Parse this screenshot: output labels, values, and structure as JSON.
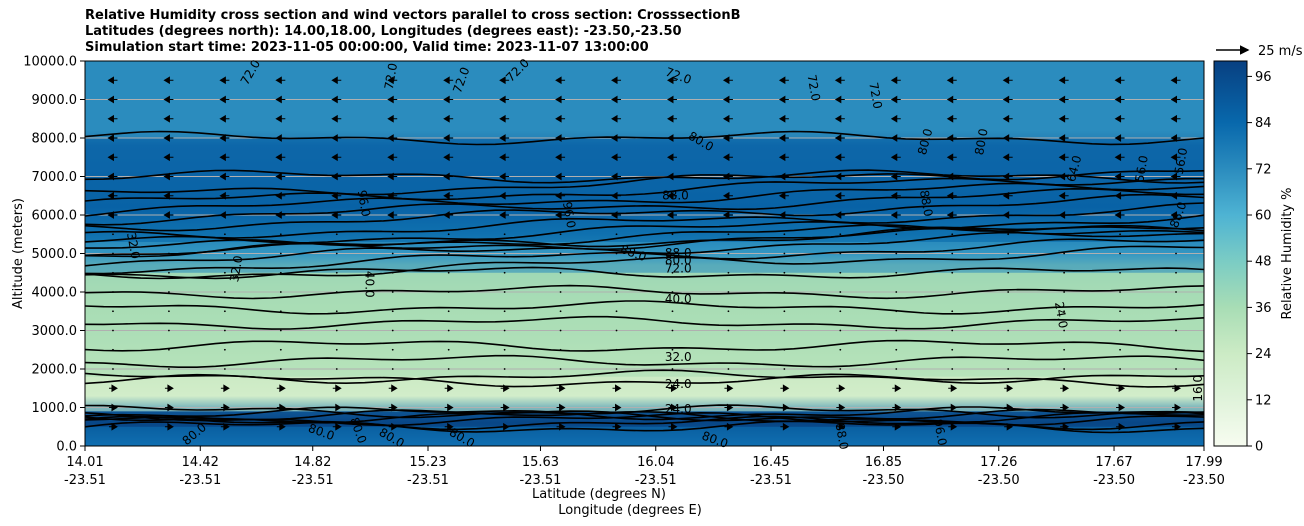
{
  "title_lines": [
    "Relative Humidity cross section and wind vectors parallel to cross section: CrosssectionB",
    "Latitudes (degrees north): 14.00,18.00, Longitudes (degrees east): -23.50,-23.50",
    "Simulation start time: 2023-11-05 00:00:00, Valid time: 2023-11-07 13:00:00"
  ],
  "chart_data": {
    "type": "heatmap",
    "subtype": "filled-contour cross section with wind vectors",
    "ylabel": "Altitude (meters)",
    "xlabel": "Latitude (degrees N)",
    "xlabel2": "Longitude (degrees E)",
    "ylim": [
      0,
      10000
    ],
    "yticks": [
      "0.0",
      "1000.0",
      "2000.0",
      "3000.0",
      "4000.0",
      "5000.0",
      "6000.0",
      "7000.0",
      "8000.0",
      "9000.0",
      "10000.0"
    ],
    "xticks": [
      {
        "lat": "14.01",
        "lon": "-23.51"
      },
      {
        "lat": "14.42",
        "lon": "-23.51"
      },
      {
        "lat": "14.82",
        "lon": "-23.51"
      },
      {
        "lat": "15.23",
        "lon": "-23.51"
      },
      {
        "lat": "15.63",
        "lon": "-23.51"
      },
      {
        "lat": "16.04",
        "lon": "-23.51"
      },
      {
        "lat": "16.45",
        "lon": "-23.51"
      },
      {
        "lat": "16.85",
        "lon": "-23.50"
      },
      {
        "lat": "17.26",
        "lon": "-23.50"
      },
      {
        "lat": "17.67",
        "lon": "-23.50"
      },
      {
        "lat": "17.99",
        "lon": "-23.50"
      }
    ],
    "colorbar": {
      "label": "Relative Humidity %",
      "range": [
        0,
        100
      ],
      "ticks": [
        "0",
        "12",
        "24",
        "36",
        "48",
        "60",
        "72",
        "84",
        "96"
      ],
      "step": 4
    },
    "layers": [
      {
        "from": 0,
        "to": 500,
        "rh": 80
      },
      {
        "from": 500,
        "to": 900,
        "rh": 96
      },
      {
        "from": 900,
        "to": 1800,
        "rh": 20
      },
      {
        "from": 1800,
        "to": 3200,
        "rh": 30
      },
      {
        "from": 3200,
        "to": 4500,
        "rh": 38
      },
      {
        "from": 4500,
        "to": 5300,
        "rh": 70
      },
      {
        "from": 5300,
        "to": 7000,
        "rh": 90
      },
      {
        "from": 7000,
        "to": 8000,
        "rh": 86
      },
      {
        "from": 8000,
        "to": 10000,
        "rh": 72
      }
    ],
    "contour_labels": [
      {
        "text": "72.0",
        "x": 14.6,
        "y": 9700,
        "rot": -60
      },
      {
        "text": "72.0",
        "x": 15.1,
        "y": 9600,
        "rot": -80
      },
      {
        "text": "72.0",
        "x": 15.35,
        "y": 9500,
        "rot": -70
      },
      {
        "text": "72.0",
        "x": 15.55,
        "y": 9750,
        "rot": -45
      },
      {
        "text": "72.0",
        "x": 16.12,
        "y": 9600,
        "rot": 20
      },
      {
        "text": "72.0",
        "x": 16.6,
        "y": 9300,
        "rot": 80
      },
      {
        "text": "72.0",
        "x": 16.82,
        "y": 9100,
        "rot": 80
      },
      {
        "text": "80.0",
        "x": 16.2,
        "y": 7900,
        "rot": 30
      },
      {
        "text": "80.0",
        "x": 17.0,
        "y": 7900,
        "rot": -75
      },
      {
        "text": "80.0",
        "x": 17.2,
        "y": 7900,
        "rot": -80
      },
      {
        "text": "64.0",
        "x": 17.53,
        "y": 7200,
        "rot": -75
      },
      {
        "text": "56.0",
        "x": 17.77,
        "y": 7200,
        "rot": -80
      },
      {
        "text": "56.0",
        "x": 17.91,
        "y": 7400,
        "rot": -80
      },
      {
        "text": "88.0",
        "x": 16.11,
        "y": 6500,
        "rot": 0
      },
      {
        "text": "88.0",
        "x": 17.0,
        "y": 6300,
        "rot": 80
      },
      {
        "text": "88.0",
        "x": 17.9,
        "y": 6000,
        "rot": -70
      },
      {
        "text": "96.0",
        "x": 15.0,
        "y": 6300,
        "rot": 80
      },
      {
        "text": "96.0",
        "x": 15.73,
        "y": 6000,
        "rot": 80
      },
      {
        "text": "88.0",
        "x": 15.96,
        "y": 5000,
        "rot": 20
      },
      {
        "text": "88.0",
        "x": 16.12,
        "y": 5000,
        "rot": 0
      },
      {
        "text": "80.0",
        "x": 16.12,
        "y": 4800,
        "rot": 0
      },
      {
        "text": "72.0",
        "x": 16.12,
        "y": 4600,
        "rot": 0
      },
      {
        "text": "32.0",
        "x": 14.18,
        "y": 5200,
        "rot": 80
      },
      {
        "text": "32.0",
        "x": 14.55,
        "y": 4600,
        "rot": -80
      },
      {
        "text": "40.0",
        "x": 15.02,
        "y": 4200,
        "rot": 90
      },
      {
        "text": "40.0",
        "x": 16.12,
        "y": 3800,
        "rot": 0
      },
      {
        "text": "32.0",
        "x": 16.12,
        "y": 2300,
        "rot": 0
      },
      {
        "text": "24.0",
        "x": 16.12,
        "y": 1600,
        "rot": 0
      },
      {
        "text": "24.0",
        "x": 17.48,
        "y": 3400,
        "rot": 80
      },
      {
        "text": "16.0",
        "x": 17.97,
        "y": 1500,
        "rot": -90
      },
      {
        "text": "24.0",
        "x": 16.12,
        "y": 950,
        "rot": 0
      },
      {
        "text": "80.0",
        "x": 14.4,
        "y": 300,
        "rot": -40
      },
      {
        "text": "80.0",
        "x": 14.85,
        "y": 350,
        "rot": 20
      },
      {
        "text": "80.0",
        "x": 14.98,
        "y": 400,
        "rot": 70
      },
      {
        "text": "80.0",
        "x": 15.1,
        "y": 200,
        "rot": 30
      },
      {
        "text": "80.0",
        "x": 15.35,
        "y": 200,
        "rot": 30
      },
      {
        "text": "80.0",
        "x": 16.25,
        "y": 150,
        "rot": 20
      },
      {
        "text": "88.0",
        "x": 16.7,
        "y": 250,
        "rot": 80
      },
      {
        "text": "96.0",
        "x": 17.05,
        "y": 350,
        "rot": 80
      }
    ],
    "vectors": {
      "columns": 20,
      "levels": [
        9500,
        9000,
        8500,
        8000,
        7500,
        7000,
        6500,
        6000,
        5500,
        5000,
        4500,
        4000,
        3500,
        3000,
        2500,
        2000,
        1500,
        1000,
        500
      ],
      "direction_by_level": [
        "W",
        "W",
        "W",
        "W",
        "W",
        "W",
        "W",
        "W",
        "calm",
        "calm",
        "calm",
        "calm",
        "calm",
        "calm",
        "calm",
        "calm",
        "E",
        "E",
        "E"
      ]
    },
    "reference_vector": {
      "label": "25 m/s",
      "speed": 25
    }
  }
}
